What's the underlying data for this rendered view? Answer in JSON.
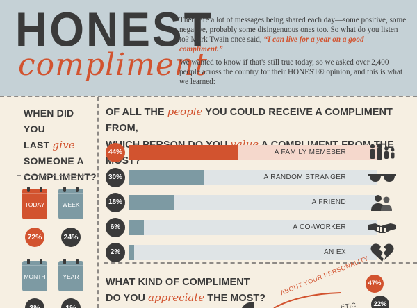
{
  "header": {
    "logo_top": "HONEST",
    "logo_bottom": "compliment",
    "intro_1": "There are a lot of messages being shared each day—some positive, some negative, probably some disingenuous ones too.  So what do you listen to?  Mark Twain once said,",
    "intro_quote": "“I can live for a year on a good compliment.”",
    "intro_2": "We wanted to know if that's still true today, so we asked over 2,400 people across the country for their HONEST® opinion, and this is what we learned:"
  },
  "left": {
    "q_line1": "WHEN DID YOU",
    "q_line2_pre": "LAST",
    "q_line2_accent": "give",
    "q_line3": "SOMEONE A",
    "q_line4": "COMPLIMENT?",
    "calendars": [
      {
        "label": "TODAY",
        "pct": "72%",
        "color": "#d2532f"
      },
      {
        "label": "WEEK",
        "pct": "24%",
        "color": "#7d9aa3"
      },
      {
        "label": "MONTH",
        "pct": "3%",
        "color": "#7d9aa3"
      },
      {
        "label": "YEAR",
        "pct": "1%",
        "color": "#7d9aa3"
      }
    ]
  },
  "q1": {
    "line1_pre": "OF ALL THE",
    "line1_accent": "people",
    "line1_post": "YOU COULD RECEIVE A COMPLIMENT FROM,",
    "line2_pre": "WHICH PERSON DO YOU",
    "line2_accent": "value",
    "line2_post": "A COMPLIMENT FROM THE MOST?",
    "rows": [
      {
        "pct": "44%",
        "value": 44,
        "label": "A FAMILY MEMEBER",
        "icon": "family-icon"
      },
      {
        "pct": "30%",
        "value": 30,
        "label": "A RANDOM STRANGER",
        "icon": "sunglasses-icon"
      },
      {
        "pct": "18%",
        "value": 18,
        "label": "A FRIEND",
        "icon": "friends-icon"
      },
      {
        "pct": "6%",
        "value": 6,
        "label": "A CO-WORKER",
        "icon": "handshake-icon"
      },
      {
        "pct": "2%",
        "value": 2,
        "label": "AN EX",
        "icon": "broken-heart-icon"
      }
    ]
  },
  "q2": {
    "line1": "WHAT KIND OF COMPLIMENT",
    "line2_pre": "DO YOU",
    "line2_accent": "appreciate",
    "line2_post": "THE MOST?",
    "arc_label_1": "ABOUT YOUR PERSONALITY",
    "arc_label_2": "ETIC",
    "pct_1": "47%",
    "pct_2": "22%"
  },
  "colors": {
    "accent": "#d2532f",
    "bar": "#7d9aa3",
    "dark": "#3a3a3a",
    "background": "#f6efe2",
    "header": "#c5d1d6"
  }
}
